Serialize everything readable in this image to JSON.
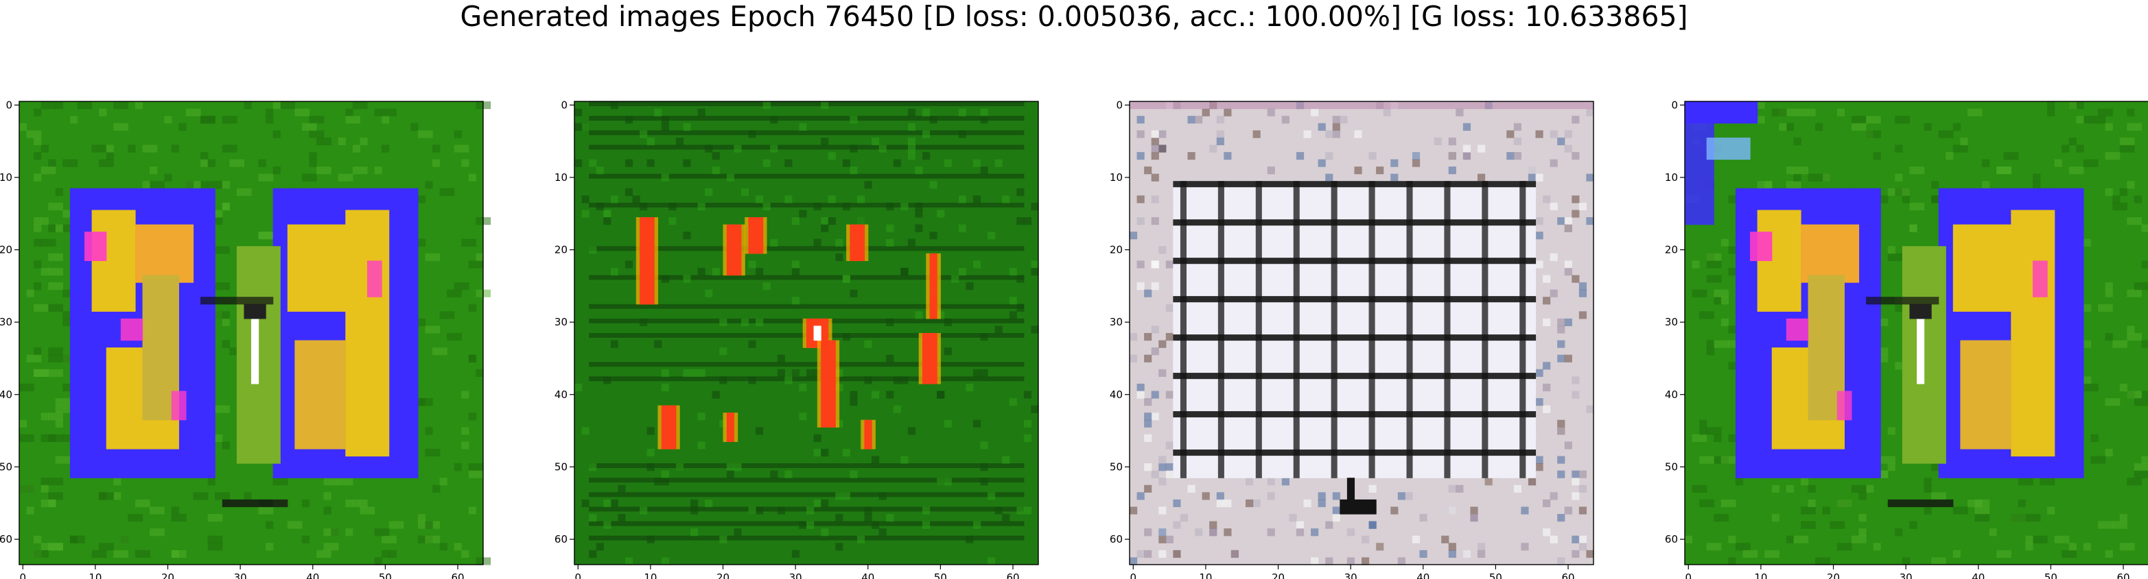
{
  "title": "Generated images Epoch 76450 [D loss: 0.005036, acc.: 100.00%] [G loss: 10.633865]",
  "chart_data": [
    {
      "type": "heatmap",
      "content": "generated image: green background, two blue-outlined blocks filled with yellow, magenta and orange blotches",
      "grid": [
        64,
        64
      ],
      "xlim": [
        0,
        63
      ],
      "ylim": [
        63,
        0
      ],
      "xticks": [
        0,
        10,
        20,
        30,
        40,
        50,
        60
      ],
      "yticks": [
        0,
        10,
        20,
        30,
        40,
        50,
        60
      ],
      "colors": {
        "background": "#2a8f12",
        "block": "#3c2cff",
        "fill": "#e8c21c",
        "accent": "#ff3cc8",
        "highlight": "#ffffff"
      }
    },
    {
      "type": "heatmap",
      "content": "generated image: dark green background with horizontal dark streaks and scattered red/orange vertical marks",
      "grid": [
        64,
        64
      ],
      "xlim": [
        0,
        63
      ],
      "ylim": [
        63,
        0
      ],
      "xticks": [
        0,
        10,
        20,
        30,
        40,
        50,
        60
      ],
      "yticks": [
        0,
        10,
        20,
        30,
        40,
        50,
        60
      ],
      "colors": {
        "background": "#1f7a12",
        "streak": "#0f3d0a",
        "mark": "#ff3a1a",
        "glow": "#ffb000"
      }
    },
    {
      "type": "heatmap",
      "content": "generated image: light grey noisy background with a dark grid of rectangular cells and a small dark base",
      "grid": [
        64,
        64
      ],
      "xlim": [
        0,
        63
      ],
      "ylim": [
        63,
        0
      ],
      "xticks": [
        0,
        10,
        20,
        30,
        40,
        50,
        60
      ],
      "yticks": [
        0,
        10,
        20,
        30,
        40,
        50,
        60
      ],
      "colors": {
        "background": "#d8d0d4",
        "line": "#141414",
        "cell": "#f0eef6",
        "noise": "#4a6aa0"
      }
    },
    {
      "type": "heatmap",
      "content": "generated image: green background, two blue-outlined blocks filled with yellow, blue corner at top-left",
      "grid": [
        64,
        64
      ],
      "xlim": [
        0,
        63
      ],
      "ylim": [
        63,
        0
      ],
      "xticks": [
        0,
        10,
        20,
        30,
        40,
        50,
        60
      ],
      "yticks": [
        0,
        10,
        20,
        30,
        40,
        50,
        60
      ],
      "colors": {
        "background": "#2a8f12",
        "block": "#3c2cff",
        "fill": "#e8c21c",
        "accent": "#ff3cc8",
        "highlight": "#ffffff"
      }
    }
  ]
}
